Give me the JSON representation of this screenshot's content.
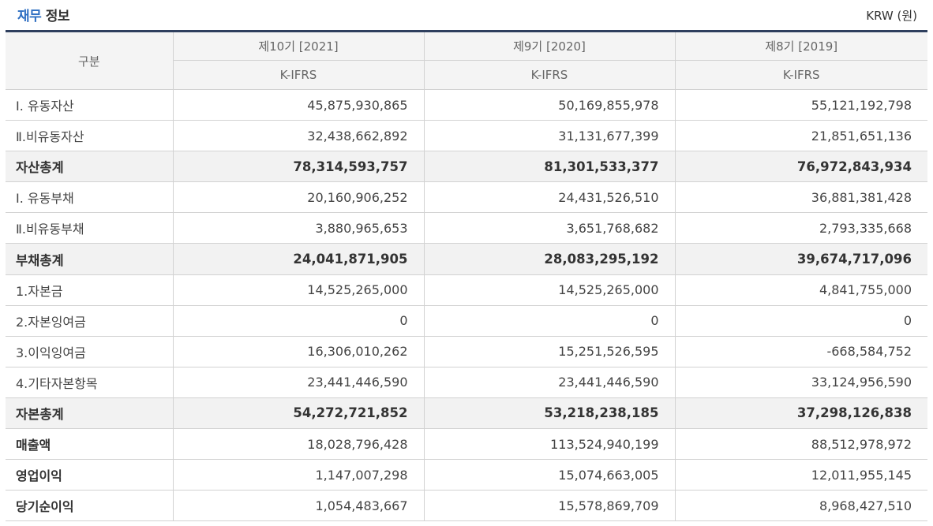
{
  "header": {
    "title_accent": "재무",
    "title_rest": "정보",
    "unit": "KRW (원)"
  },
  "table": {
    "corner_label": "구분",
    "periods": [
      {
        "label": "제10기 [2021]",
        "standard": "K-IFRS"
      },
      {
        "label": "제9기 [2020]",
        "standard": "K-IFRS"
      },
      {
        "label": "제8기 [2019]",
        "standard": "K-IFRS"
      }
    ],
    "rows": [
      {
        "label": "Ⅰ. 유동자산",
        "values": [
          "45,875,930,865",
          "50,169,855,978",
          "55,121,192,798"
        ]
      },
      {
        "label": "Ⅱ.비유동자산",
        "values": [
          "32,438,662,892",
          "31,131,677,399",
          "21,851,651,136"
        ]
      },
      {
        "label": "자산총계",
        "values": [
          "78,314,593,757",
          "81,301,533,377",
          "76,972,843,934"
        ]
      },
      {
        "label": "Ⅰ. 유동부채",
        "values": [
          "20,160,906,252",
          "24,431,526,510",
          "36,881,381,428"
        ]
      },
      {
        "label": "Ⅱ.비유동부채",
        "values": [
          "3,880,965,653",
          "3,651,768,682",
          "2,793,335,668"
        ]
      },
      {
        "label": "부채총계",
        "values": [
          "24,041,871,905",
          "28,083,295,192",
          "39,674,717,096"
        ]
      },
      {
        "label": "1.자본금",
        "values": [
          "14,525,265,000",
          "14,525,265,000",
          "4,841,755,000"
        ]
      },
      {
        "label": "2.자본잉여금",
        "values": [
          "0",
          "0",
          "0"
        ]
      },
      {
        "label": "3.이익잉여금",
        "values": [
          "16,306,010,262",
          "15,251,526,595",
          "-668,584,752"
        ]
      },
      {
        "label": "4.기타자본항목",
        "values": [
          "23,441,446,590",
          "23,441,446,590",
          "33,124,956,590"
        ]
      },
      {
        "label": "자본총계",
        "values": [
          "54,272,721,852",
          "53,218,238,185",
          "37,298,126,838"
        ]
      },
      {
        "label": "매출액",
        "values": [
          "18,028,796,428",
          "113,524,940,199",
          "88,512,978,972"
        ]
      },
      {
        "label": "영업이익",
        "values": [
          "1,147,007,298",
          "15,074,663,005",
          "12,011,955,145"
        ]
      },
      {
        "label": "당기순이익",
        "values": [
          "1,054,483,667",
          "15,578,869,709",
          "8,968,427,510"
        ]
      }
    ]
  }
}
